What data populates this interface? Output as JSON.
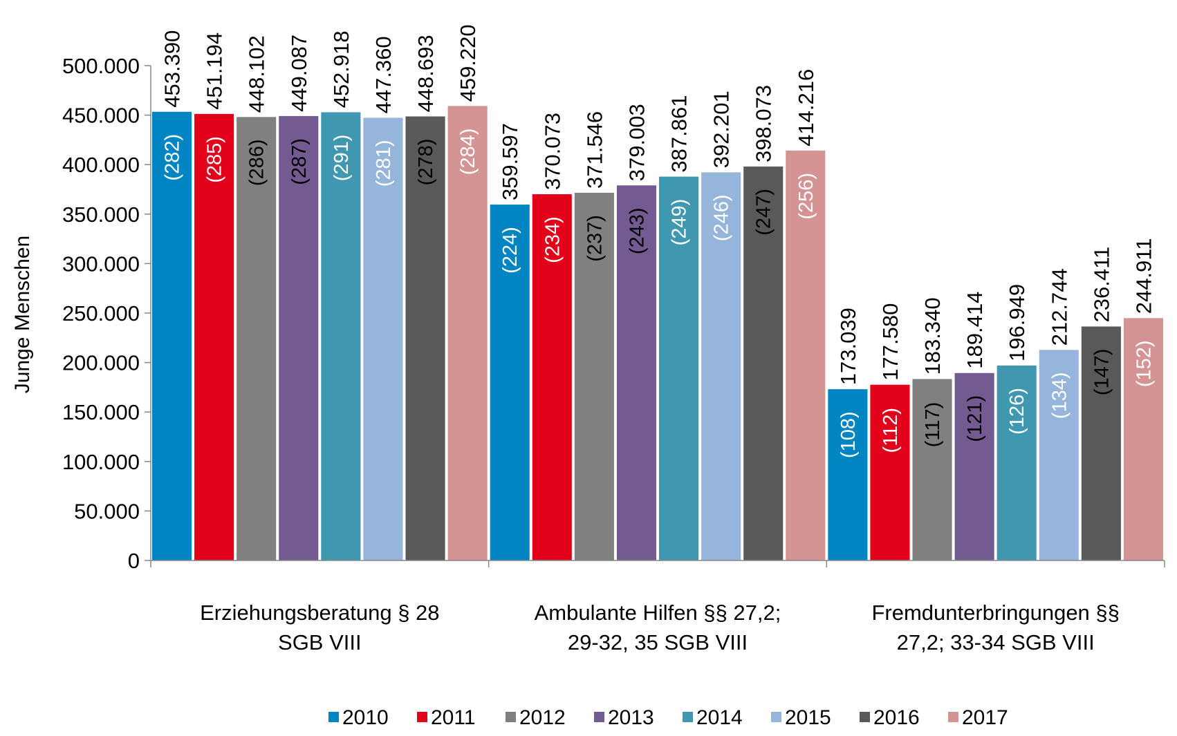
{
  "chart_data": {
    "type": "bar",
    "title": "",
    "xlabel": "",
    "ylabel": "Junge Menschen",
    "ylim": [
      0,
      500000
    ],
    "yticks": [
      {
        "value": 0,
        "label": "0"
      },
      {
        "value": 50000,
        "label": "50.000"
      },
      {
        "value": 100000,
        "label": "100.000"
      },
      {
        "value": 150000,
        "label": "150.000"
      },
      {
        "value": 200000,
        "label": "200.000"
      },
      {
        "value": 250000,
        "label": "250.000"
      },
      {
        "value": 300000,
        "label": "300.000"
      },
      {
        "value": 350000,
        "label": "350.000"
      },
      {
        "value": 400000,
        "label": "400.000"
      },
      {
        "value": 450000,
        "label": "450.000"
      },
      {
        "value": 500000,
        "label": "500.000"
      }
    ],
    "categories": [
      [
        "Erziehungsberatung § 28",
        "SGB VIII"
      ],
      [
        "Ambulante Hilfen §§ 27,2;",
        "29-32, 35 SGB VIII"
      ],
      [
        "Fremdunterbringungen §§",
        "27,2; 33-34 SGB VIII"
      ]
    ],
    "legend_position": "bottom",
    "grid": false,
    "series": [
      {
        "name": "2010",
        "color": "#0085c3",
        "values": [
          453390,
          359597,
          173039
        ],
        "labels": [
          "453.390",
          "359.597",
          "173.039"
        ],
        "inner_labels": [
          "(282)",
          "(224)",
          "(108)"
        ],
        "inner_text_color": "#ffffff"
      },
      {
        "name": "2011",
        "color": "#e2001a",
        "values": [
          451194,
          370073,
          177580
        ],
        "labels": [
          "451.194",
          "370.073",
          "177.580"
        ],
        "inner_labels": [
          "(285)",
          "(234)",
          "(112)"
        ],
        "inner_text_color": "#ffffff"
      },
      {
        "name": "2012",
        "color": "#808080",
        "values": [
          448102,
          371546,
          183340
        ],
        "labels": [
          "448.102",
          "371.546",
          "183.340"
        ],
        "inner_labels": [
          "(286)",
          "(237)",
          "(117)"
        ],
        "inner_text_color": "#000000"
      },
      {
        "name": "2013",
        "color": "#735a91",
        "values": [
          449087,
          379003,
          189414
        ],
        "labels": [
          "449.087",
          "379.003",
          "189.414"
        ],
        "inner_labels": [
          "(287)",
          "(243)",
          "(121)"
        ],
        "inner_text_color": "#000000"
      },
      {
        "name": "2014",
        "color": "#4098b0",
        "values": [
          452918,
          387861,
          196949
        ],
        "labels": [
          "452.918",
          "387.861",
          "196.949"
        ],
        "inner_labels": [
          "(291)",
          "(249)",
          "(126)"
        ],
        "inner_text_color": "#ffffff"
      },
      {
        "name": "2015",
        "color": "#96b5db",
        "values": [
          447360,
          392201,
          212744
        ],
        "labels": [
          "447.360",
          "392.201",
          "212.744"
        ],
        "inner_labels": [
          "(281)",
          "(246)",
          "(134)"
        ],
        "inner_text_color": "#ffffff"
      },
      {
        "name": "2016",
        "color": "#595959",
        "values": [
          448693,
          398073,
          236411
        ],
        "labels": [
          "448.693",
          "398.073",
          "236.411"
        ],
        "inner_labels": [
          "(278)",
          "(247)",
          "(147)"
        ],
        "inner_text_color": "#000000"
      },
      {
        "name": "2017",
        "color": "#d49494",
        "values": [
          459220,
          414216,
          244911
        ],
        "labels": [
          "459.220",
          "414.216",
          "244.911"
        ],
        "inner_labels": [
          "(284)",
          "(256)",
          "(152)"
        ],
        "inner_text_color": "#ffffff"
      }
    ]
  }
}
